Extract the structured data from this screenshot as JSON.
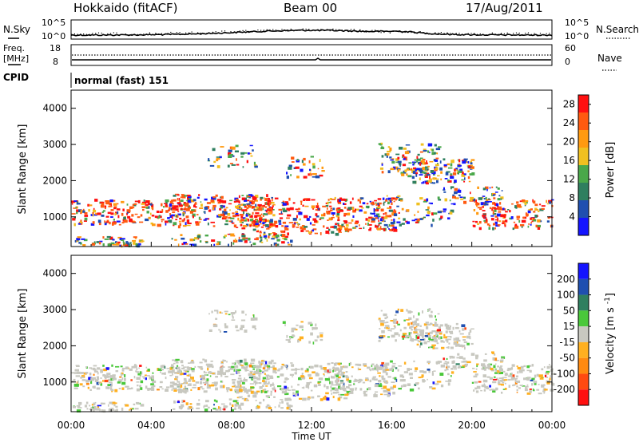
{
  "header": {
    "station": "Hokkaido (fitACF)",
    "beam": "Beam 00",
    "date": "17/Aug/2011"
  },
  "noise_panel": {
    "left_label": "N.Sky",
    "right_label": "N.Search",
    "left_ticks": [
      "10^5",
      "10^0"
    ],
    "right_ticks": [
      "10^5",
      "10^0"
    ]
  },
  "freq_panel": {
    "left_label_line1": "Freq.",
    "left_label_line2": "[MHz]",
    "left_ticks": [
      "18",
      "8"
    ],
    "right_label": "Nave",
    "right_ticks": [
      "60",
      "0"
    ]
  },
  "cpid_panel": {
    "label": "CPID",
    "text": "normal (fast) 151"
  },
  "colors": {
    "power_scale": [
      "#1414ff",
      "#1f4fb0",
      "#2f7f5f",
      "#4aa84a",
      "#f0c020",
      "#ff9a10",
      "#ff5a10",
      "#ff1010"
    ],
    "velocity_scale": [
      "#1414ff",
      "#1f4fb0",
      "#2f7f5f",
      "#4ac83a",
      "#c8c8c0",
      "#ffb020",
      "#ff8a10",
      "#ff4a10",
      "#ff1010"
    ]
  },
  "chart_data": [
    {
      "type": "heatmap",
      "title": "Power",
      "xlabel": "Time UT",
      "ylabel": "Slant Range [km]",
      "x_ticks": [
        "00:00",
        "04:00",
        "08:00",
        "12:00",
        "16:00",
        "20:00",
        "00:00"
      ],
      "x_range_hours": [
        0,
        24
      ],
      "y_ticks": [
        1000,
        2000,
        3000,
        4000
      ],
      "ylim": [
        180,
        4500
      ],
      "colorbar_label": "Power [dB]",
      "colorbar_ticks": [
        4,
        8,
        12,
        16,
        20,
        24,
        28
      ],
      "colorbar_range": [
        0,
        30
      ]
    },
    {
      "type": "heatmap",
      "title": "Velocity",
      "xlabel": "Time UT",
      "ylabel": "Slant Range [km]",
      "x_ticks": [
        "00:00",
        "04:00",
        "08:00",
        "12:00",
        "16:00",
        "20:00",
        "00:00"
      ],
      "x_range_hours": [
        0,
        24
      ],
      "y_ticks": [
        1000,
        2000,
        3000,
        4000
      ],
      "ylim": [
        180,
        4500
      ],
      "colorbar_label": "Velocity [m s^-1]",
      "colorbar_ticks": [
        200,
        100,
        50,
        15,
        -15,
        -50,
        -100,
        -200
      ]
    }
  ]
}
